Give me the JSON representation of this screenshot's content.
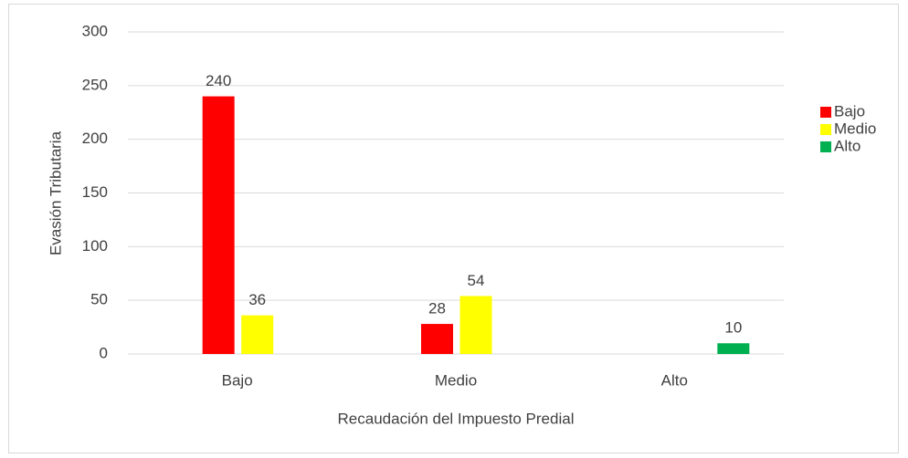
{
  "chart_data": {
    "type": "bar",
    "categories": [
      "Bajo",
      "Medio",
      "Alto"
    ],
    "series": [
      {
        "name": "Bajo",
        "color": "#ff0000",
        "values": [
          240,
          28,
          null
        ]
      },
      {
        "name": "Medio",
        "color": "#ffff00",
        "values": [
          36,
          54,
          null
        ]
      },
      {
        "name": "Alto",
        "color": "#00b050",
        "values": [
          null,
          null,
          10
        ]
      }
    ],
    "ylim": [
      0,
      300
    ],
    "yticks": [
      0,
      50,
      100,
      150,
      200,
      250,
      300
    ],
    "grid": true,
    "y_label": "Evasión Tributaria",
    "x_label": "Recaudación del Impuesto Predial",
    "legend": "right"
  }
}
